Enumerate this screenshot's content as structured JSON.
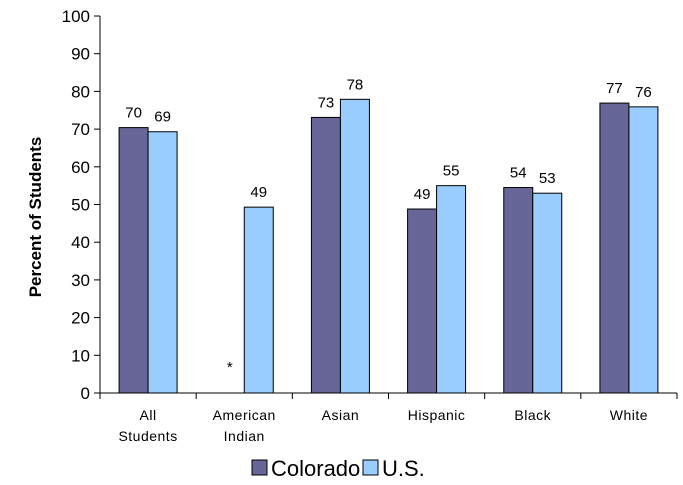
{
  "chart_data": {
    "type": "bar",
    "title": "",
    "xlabel": "",
    "ylabel": "Percent of Students",
    "ylim": [
      0,
      100
    ],
    "yticks": [
      0,
      10,
      20,
      30,
      40,
      50,
      60,
      70,
      80,
      90,
      100
    ],
    "grid": false,
    "legend_position": "bottom",
    "categories": [
      [
        "All",
        "Students"
      ],
      [
        "American",
        "Indian"
      ],
      [
        "Asian"
      ],
      [
        "Hispanic"
      ],
      [
        "Black"
      ],
      [
        "White"
      ]
    ],
    "series": [
      {
        "name": "Colorado",
        "color": "#666699",
        "values": [
          70.4,
          null,
          73.1,
          48.8,
          54.5,
          76.9
        ],
        "labels": [
          "70",
          "*",
          "73",
          "49",
          "54",
          "77"
        ]
      },
      {
        "name": "U.S.",
        "color": "#99CCFF",
        "values": [
          69.3,
          49.3,
          77.9,
          55.0,
          53.0,
          75.9
        ],
        "labels": [
          "69",
          "49",
          "78",
          "55",
          "53",
          "76"
        ]
      }
    ]
  }
}
